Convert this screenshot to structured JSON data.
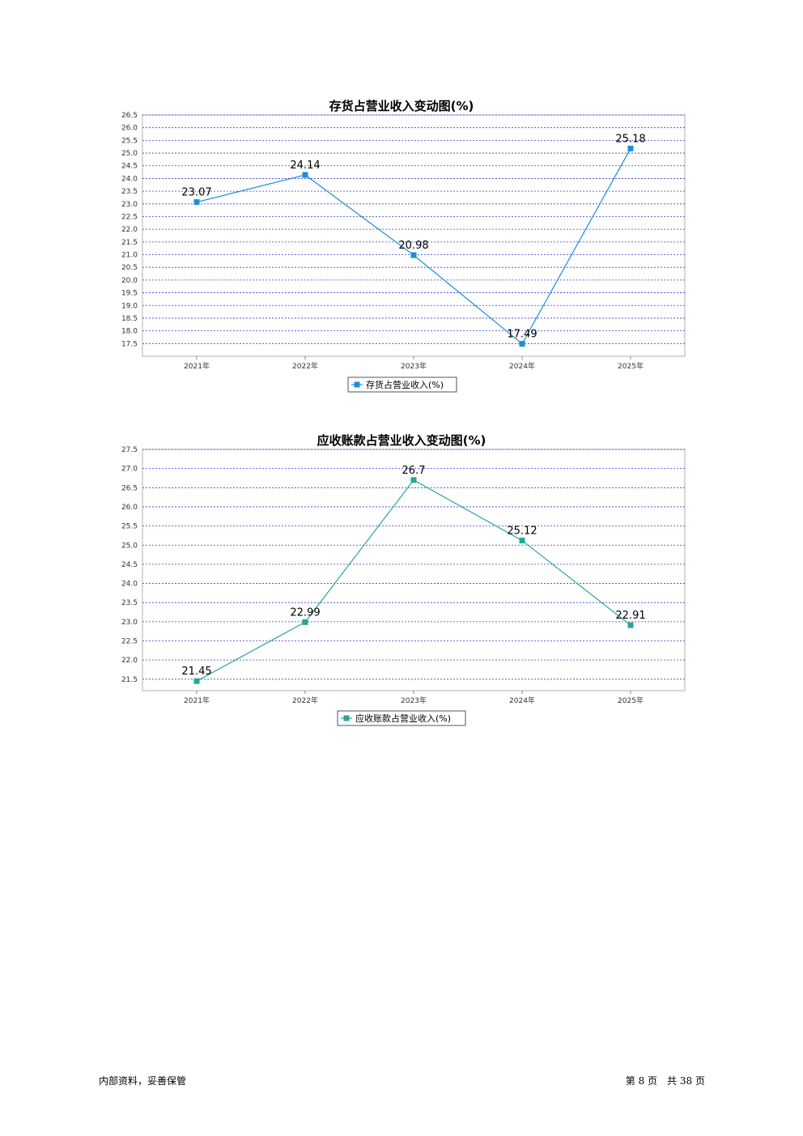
{
  "chart_data": [
    {
      "type": "line",
      "title": "存货占营业收入变动图(%)",
      "categories": [
        "2021年",
        "2022年",
        "2023年",
        "2024年",
        "2025年"
      ],
      "series": [
        {
          "name": "存货占营业收入(%)",
          "values": [
            23.07,
            24.14,
            20.98,
            17.49,
            25.18
          ]
        }
      ],
      "ylim": [
        17.0,
        26.5
      ],
      "yticks": [
        "26.5",
        "26.0",
        "25.5",
        "25.0",
        "24.5",
        "24.0",
        "23.5",
        "23.0",
        "22.5",
        "22.0",
        "21.5",
        "21.0",
        "20.5",
        "20.0",
        "19.5",
        "19.0",
        "18.5",
        "18.0",
        "17.5"
      ],
      "color": "#1a8fd8",
      "grid": true,
      "legend_position": "bottom"
    },
    {
      "type": "line",
      "title": "应收账款占营业收入变动图(%)",
      "categories": [
        "2021年",
        "2022年",
        "2023年",
        "2024年",
        "2025年"
      ],
      "series": [
        {
          "name": "应收账款占营业收入(%)",
          "values": [
            21.45,
            22.99,
            26.7,
            25.12,
            22.91
          ]
        }
      ],
      "ylim": [
        21.2,
        27.5
      ],
      "yticks": [
        "27.5",
        "27.0",
        "26.5",
        "26.0",
        "25.5",
        "25.0",
        "24.5",
        "24.0",
        "23.5",
        "23.0",
        "22.5",
        "22.0",
        "21.5"
      ],
      "color": "#26a69a",
      "grid": true,
      "legend_position": "bottom"
    }
  ],
  "footer": {
    "left": "内部资料，妥善保管",
    "page_prefix": "第",
    "page_number": "8",
    "page_mid": "页　共",
    "page_total": "38",
    "page_suffix": "页"
  }
}
